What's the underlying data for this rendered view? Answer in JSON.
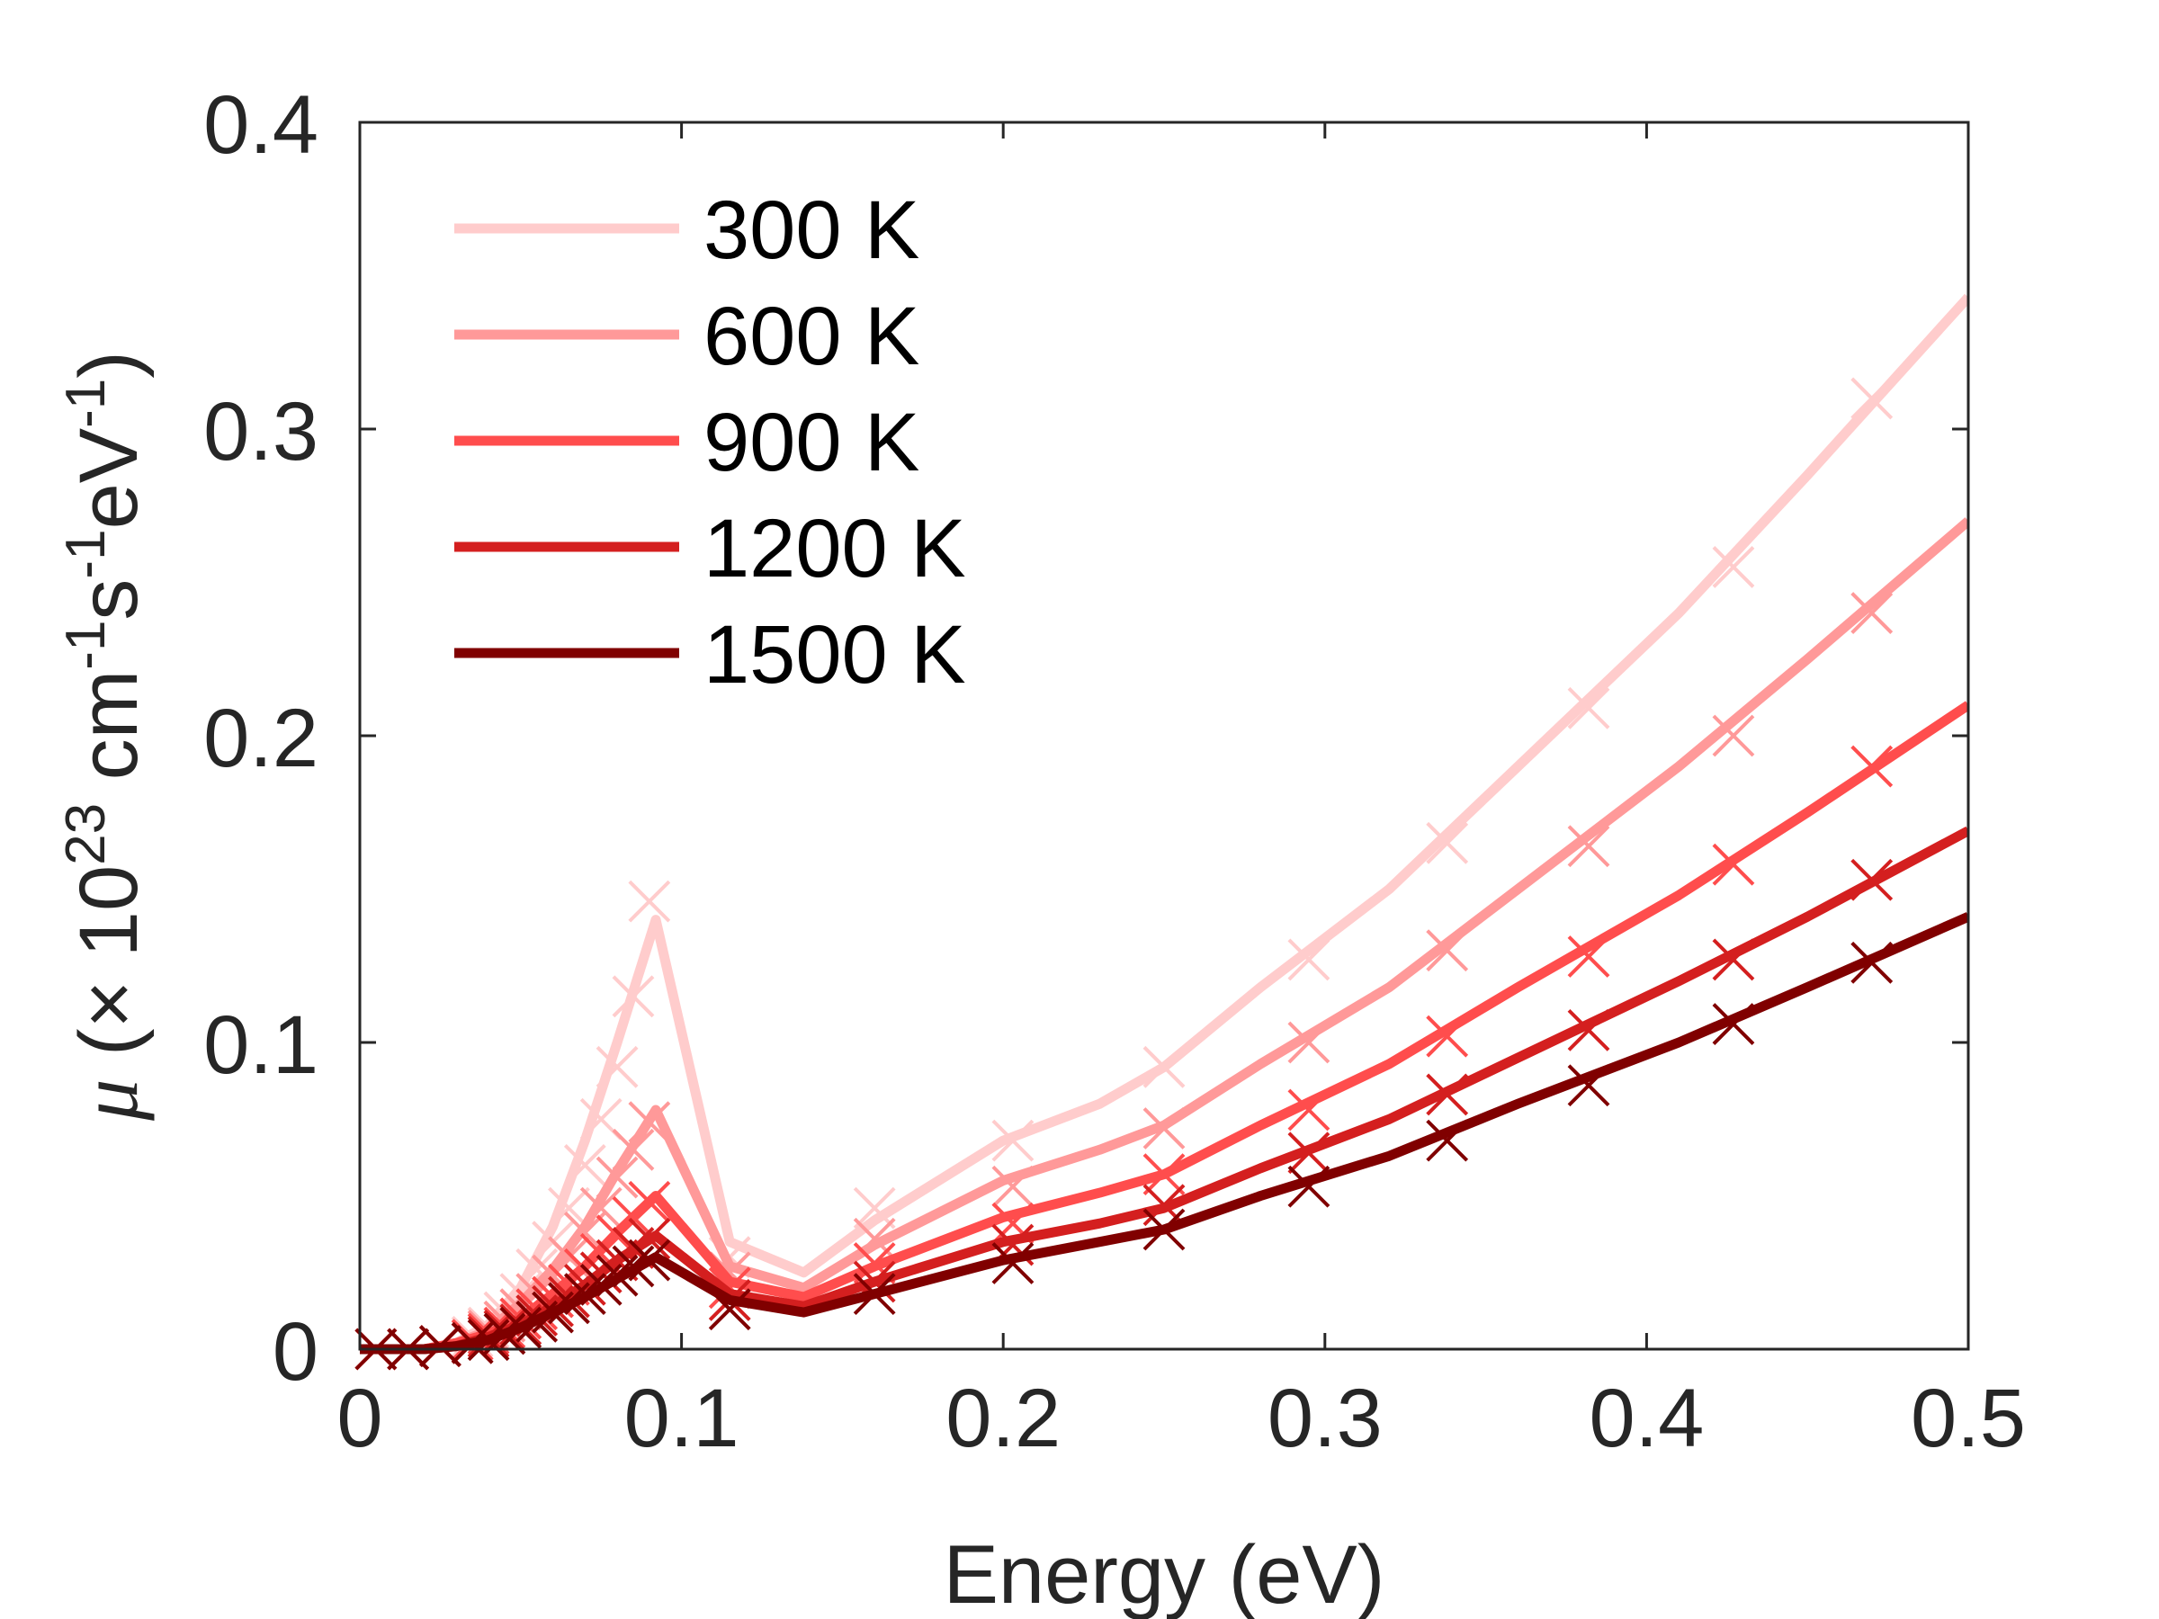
{
  "chart_data": {
    "type": "line",
    "xlabel": "Energy (eV)",
    "ylabel": {
      "symbol": "μ",
      "open": " (",
      "times": "×",
      "base": " 10",
      "exp": "23",
      "u1": " cm",
      "u1_exp": "-1",
      "u2": "s",
      "u2_exp": "-1",
      "u3": "eV",
      "u3_exp": "-1",
      "close": ")"
    },
    "xlim": [
      0,
      0.5
    ],
    "ylim": [
      0,
      0.4
    ],
    "xticks": [
      0,
      0.1,
      0.2,
      0.3,
      0.4,
      0.5
    ],
    "xtick_labels": [
      "0",
      "0.1",
      "0.2",
      "0.3",
      "0.4",
      "0.5"
    ],
    "yticks": [
      0,
      0.1,
      0.2,
      0.3,
      0.4
    ],
    "ytick_labels": [
      "0",
      "0.1",
      "0.2",
      "0.3",
      "0.4"
    ],
    "grid": false,
    "legend_position": "top-left",
    "marker": "x",
    "series": [
      {
        "name": "300 K",
        "color": "#FFCCCC",
        "line_x": [
          0,
          0.02,
          0.03,
          0.04,
          0.05,
          0.06,
          0.07,
          0.08,
          0.092,
          0.115,
          0.138,
          0.16,
          0.2,
          0.23,
          0.25,
          0.28,
          0.32,
          0.36,
          0.41,
          0.45,
          0.5
        ],
        "line_y": [
          0,
          0,
          0.002,
          0.008,
          0.02,
          0.04,
          0.068,
          0.1,
          0.14,
          0.035,
          0.025,
          0.042,
          0.068,
          0.08,
          0.092,
          0.118,
          0.15,
          0.19,
          0.24,
          0.285,
          0.343
        ],
        "marker_x": [
          0.005,
          0.015,
          0.025,
          0.035,
          0.04,
          0.045,
          0.05,
          0.055,
          0.06,
          0.065,
          0.07,
          0.075,
          0.08,
          0.085,
          0.09,
          0.115,
          0.16,
          0.203,
          0.25,
          0.295,
          0.338,
          0.382,
          0.427,
          0.47
        ],
        "marker_y": [
          0,
          0,
          0.001,
          0.004,
          0.007,
          0.012,
          0.018,
          0.026,
          0.035,
          0.046,
          0.06,
          0.075,
          0.092,
          0.115,
          0.146,
          0.03,
          0.046,
          0.068,
          0.092,
          0.127,
          0.165,
          0.209,
          0.255,
          0.31
        ]
      },
      {
        "name": "600 K",
        "color": "#FF9999",
        "line_x": [
          0,
          0.02,
          0.03,
          0.04,
          0.05,
          0.06,
          0.07,
          0.08,
          0.092,
          0.115,
          0.138,
          0.16,
          0.2,
          0.23,
          0.25,
          0.28,
          0.32,
          0.36,
          0.41,
          0.45,
          0.5
        ],
        "line_y": [
          0,
          0,
          0.002,
          0.006,
          0.015,
          0.026,
          0.04,
          0.058,
          0.078,
          0.027,
          0.02,
          0.034,
          0.055,
          0.065,
          0.073,
          0.093,
          0.118,
          0.15,
          0.19,
          0.225,
          0.27
        ],
        "marker_x": [
          0.005,
          0.015,
          0.025,
          0.035,
          0.04,
          0.045,
          0.05,
          0.055,
          0.06,
          0.065,
          0.07,
          0.075,
          0.08,
          0.085,
          0.09,
          0.115,
          0.16,
          0.203,
          0.25,
          0.295,
          0.338,
          0.382,
          0.427,
          0.47
        ],
        "marker_y": [
          0,
          0,
          0.001,
          0.003,
          0.006,
          0.009,
          0.013,
          0.018,
          0.024,
          0.03,
          0.038,
          0.046,
          0.056,
          0.065,
          0.074,
          0.025,
          0.036,
          0.053,
          0.072,
          0.1,
          0.13,
          0.164,
          0.2,
          0.24
        ]
      },
      {
        "name": "900 K",
        "color": "#FF4D4D",
        "line_x": [
          0,
          0.02,
          0.03,
          0.04,
          0.05,
          0.06,
          0.07,
          0.08,
          0.092,
          0.115,
          0.138,
          0.16,
          0.2,
          0.23,
          0.25,
          0.28,
          0.32,
          0.36,
          0.41,
          0.45,
          0.5
        ],
        "line_y": [
          0,
          0,
          0.002,
          0.005,
          0.01,
          0.018,
          0.027,
          0.038,
          0.05,
          0.022,
          0.017,
          0.027,
          0.043,
          0.051,
          0.057,
          0.073,
          0.093,
          0.118,
          0.148,
          0.175,
          0.21
        ],
        "marker_x": [
          0.005,
          0.015,
          0.025,
          0.035,
          0.04,
          0.045,
          0.05,
          0.055,
          0.06,
          0.065,
          0.07,
          0.075,
          0.08,
          0.085,
          0.09,
          0.115,
          0.16,
          0.203,
          0.25,
          0.295,
          0.338,
          0.382,
          0.427,
          0.47
        ],
        "marker_y": [
          0,
          0,
          0.001,
          0.003,
          0.005,
          0.007,
          0.01,
          0.013,
          0.017,
          0.021,
          0.026,
          0.031,
          0.037,
          0.043,
          0.048,
          0.02,
          0.028,
          0.041,
          0.057,
          0.078,
          0.102,
          0.128,
          0.158,
          0.19
        ]
      },
      {
        "name": "1200 K",
        "color": "#D41F1F",
        "line_x": [
          0,
          0.02,
          0.03,
          0.04,
          0.05,
          0.06,
          0.07,
          0.08,
          0.092,
          0.115,
          0.138,
          0.16,
          0.2,
          0.23,
          0.25,
          0.28,
          0.32,
          0.36,
          0.41,
          0.45,
          0.5
        ],
        "line_y": [
          0,
          0,
          0.001,
          0.004,
          0.008,
          0.014,
          0.021,
          0.029,
          0.037,
          0.018,
          0.014,
          0.022,
          0.035,
          0.041,
          0.046,
          0.059,
          0.075,
          0.095,
          0.12,
          0.141,
          0.169
        ],
        "marker_x": [
          0.005,
          0.015,
          0.025,
          0.035,
          0.04,
          0.045,
          0.05,
          0.055,
          0.06,
          0.065,
          0.07,
          0.075,
          0.08,
          0.085,
          0.09,
          0.115,
          0.16,
          0.203,
          0.25,
          0.295,
          0.338,
          0.382,
          0.427,
          0.47
        ],
        "marker_y": [
          0,
          0,
          0.001,
          0.002,
          0.004,
          0.006,
          0.008,
          0.011,
          0.014,
          0.017,
          0.021,
          0.025,
          0.029,
          0.033,
          0.036,
          0.016,
          0.022,
          0.034,
          0.047,
          0.064,
          0.083,
          0.104,
          0.127,
          0.153
        ]
      },
      {
        "name": "1500 K",
        "color": "#800000",
        "line_x": [
          0,
          0.02,
          0.03,
          0.04,
          0.05,
          0.06,
          0.07,
          0.08,
          0.092,
          0.115,
          0.138,
          0.16,
          0.2,
          0.23,
          0.25,
          0.28,
          0.32,
          0.36,
          0.41,
          0.45,
          0.5
        ],
        "line_y": [
          0,
          0,
          0.001,
          0.003,
          0.007,
          0.012,
          0.017,
          0.023,
          0.03,
          0.016,
          0.012,
          0.018,
          0.029,
          0.035,
          0.039,
          0.05,
          0.063,
          0.08,
          0.1,
          0.118,
          0.141
        ],
        "marker_x": [
          0.005,
          0.015,
          0.025,
          0.035,
          0.04,
          0.045,
          0.05,
          0.055,
          0.06,
          0.065,
          0.07,
          0.075,
          0.08,
          0.085,
          0.09,
          0.115,
          0.16,
          0.203,
          0.25,
          0.295,
          0.338,
          0.382,
          0.427,
          0.47
        ],
        "marker_y": [
          0,
          0,
          0.001,
          0.002,
          0.003,
          0.005,
          0.007,
          0.009,
          0.012,
          0.015,
          0.018,
          0.021,
          0.024,
          0.027,
          0.029,
          0.013,
          0.018,
          0.028,
          0.039,
          0.053,
          0.068,
          0.086,
          0.106,
          0.126
        ]
      }
    ]
  }
}
